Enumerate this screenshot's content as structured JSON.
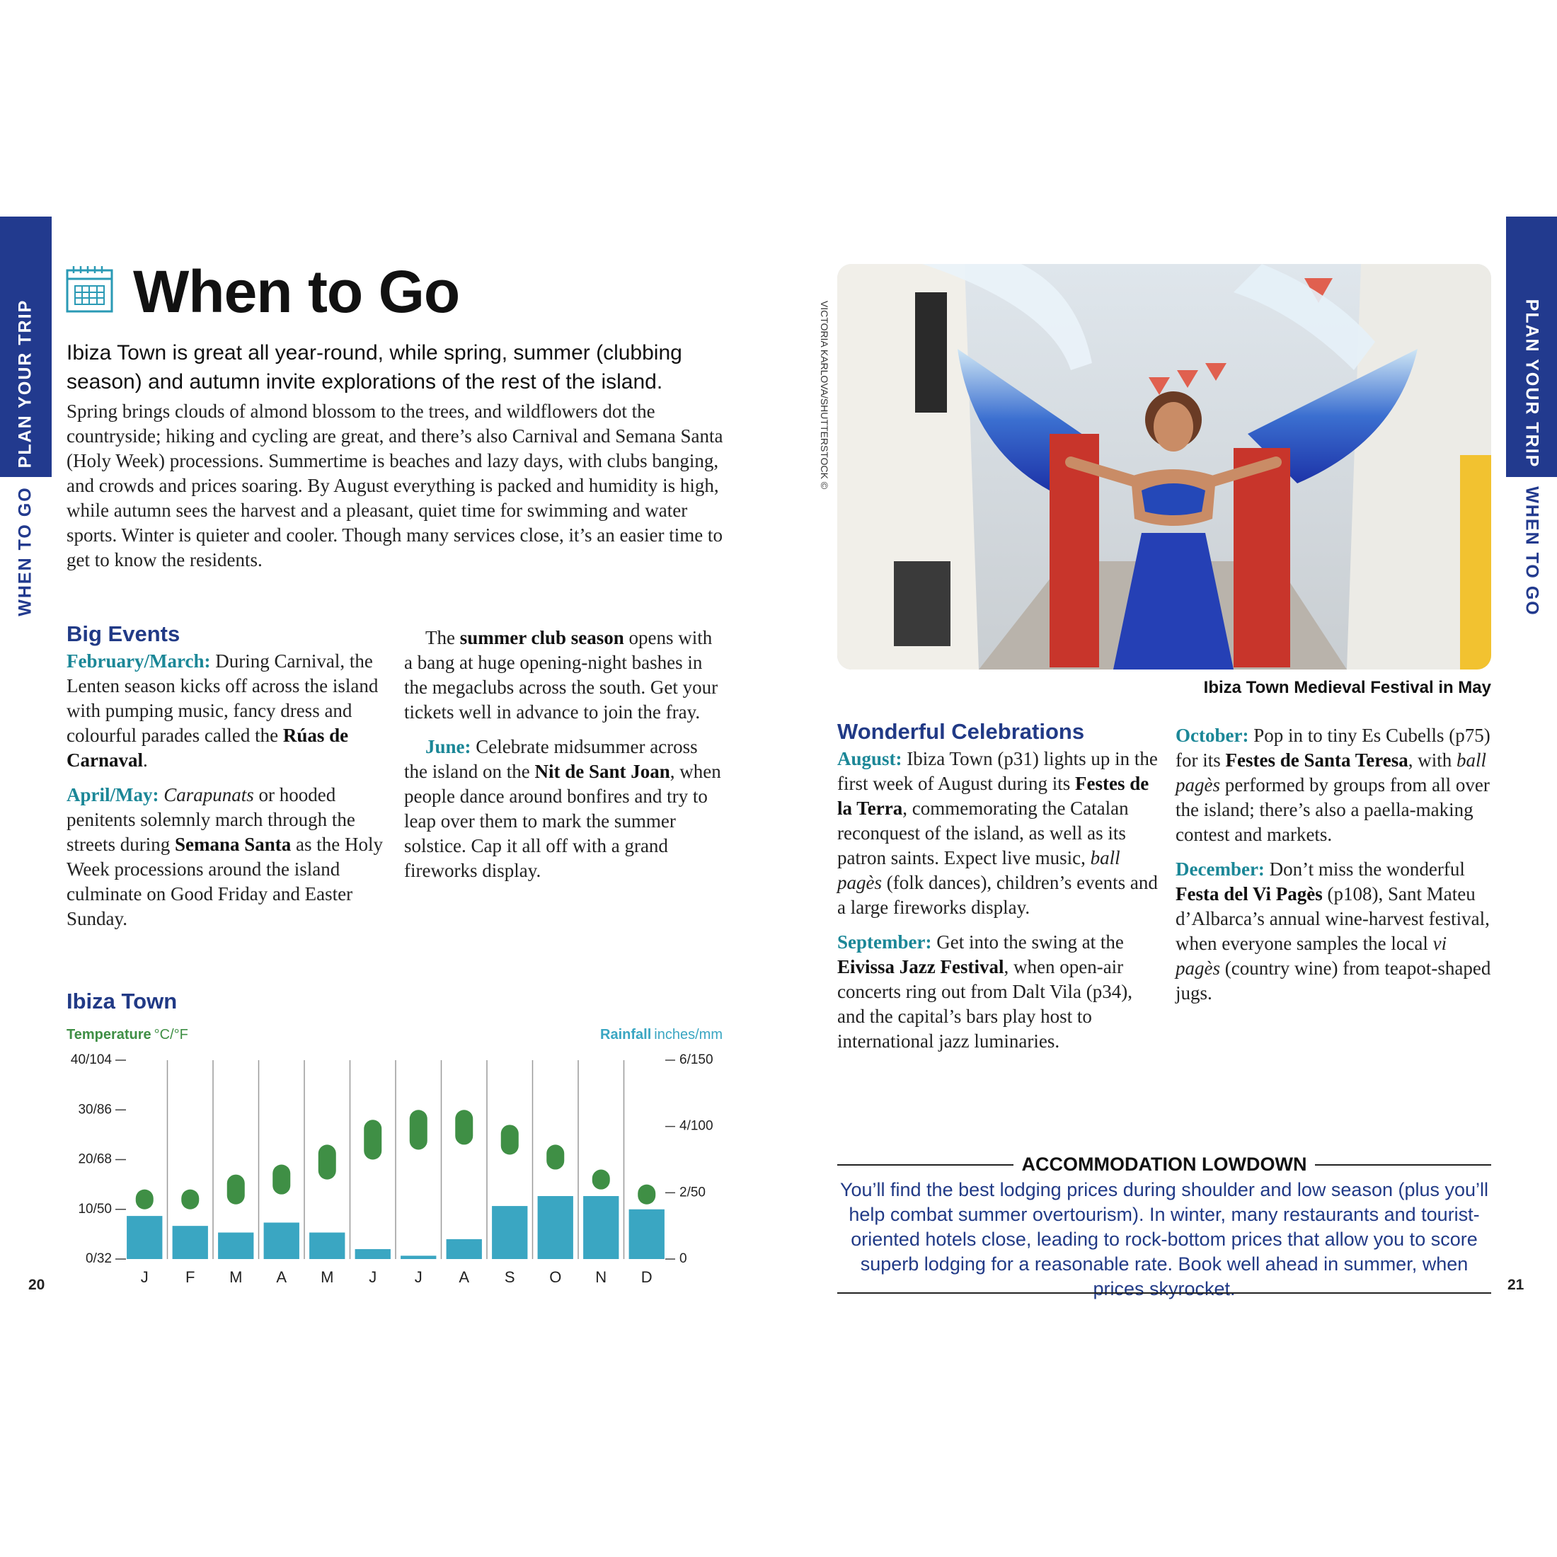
{
  "side_tab": {
    "section": "PLAN YOUR TRIP",
    "chapter": "WHEN TO GO"
  },
  "left_page": {
    "title": "When to Go",
    "intro": "Ibiza Town is great all year-round, while spring, summer (clubbing season) and autumn invite explorations of the rest of the island.",
    "body": "Spring brings clouds of almond blossom to the trees, and wildflowers dot the countryside; hiking and cycling are great, and there’s also Carnival and Semana Santa (Holy Week) processions. Summertime is beaches and lazy days, with clubs banging, and crowds and prices soaring. By August everything is packed and humidity is high, while autumn sees the harvest and a pleasant, quiet time for swimming and water sports. Winter is quieter and cooler. Though many services close, it’s an easier time to get to know the residents.",
    "big_events": {
      "heading": "Big Events",
      "columns": [
        [
          [
            {
              "text": "February/March:",
              "style": "lead"
            },
            {
              "text": " During Carnival, the Lenten season kicks off across the island with pumping music, fancy dress and colourful parades called the "
            },
            {
              "text": "Rúas de Carnaval",
              "style": "b"
            },
            {
              "text": "."
            }
          ],
          [
            {
              "text": "April/May:",
              "style": "lead"
            },
            {
              "text": " "
            },
            {
              "text": "Carapunats",
              "style": "i"
            },
            {
              "text": " or hooded penitents solemnly march through the streets during "
            },
            {
              "text": "Semana Santa",
              "style": "b"
            },
            {
              "text": " as the Holy Week processions around the island culminate on Good Friday and Easter Sunday."
            }
          ]
        ],
        [
          [
            {
              "text": "The "
            },
            {
              "text": "summer club season",
              "style": "b"
            },
            {
              "text": " opens with a bang at huge opening-night bashes in the megaclubs across the south. Get your tickets well in advance to join the fray."
            }
          ],
          [
            {
              "text": "June:",
              "style": "lead"
            },
            {
              "text": " Celebrate midsummer across the island on the "
            },
            {
              "text": "Nit de Sant Joan",
              "style": "b"
            },
            {
              "text": ", when people dance around bonfires and try to leap over them to mark the summer solstice. Cap it all off with a grand fireworks display."
            }
          ]
        ]
      ]
    },
    "page_number": 20
  },
  "chart_data": {
    "type": "bar",
    "title": "Ibiza Town",
    "y_label": "Temperature",
    "y_unit": "°C/°F",
    "y2_label": "Rainfall",
    "y2_unit": "inches/mm",
    "categories": [
      "J",
      "F",
      "M",
      "A",
      "M",
      "J",
      "J",
      "A",
      "S",
      "O",
      "N",
      "D"
    ],
    "ylim": [
      0,
      40
    ],
    "yticks": [
      {
        "value": 0,
        "label": "0/32"
      },
      {
        "value": 10,
        "label": "10/50"
      },
      {
        "value": 20,
        "label": "20/68"
      },
      {
        "value": 30,
        "label": "30/86"
      },
      {
        "value": 40,
        "label": "40/104"
      }
    ],
    "y2lim": [
      0,
      6
    ],
    "y2ticks": [
      0,
      {
        "value": 2,
        "label": "2/50"
      },
      {
        "value": 4,
        "label": "4/100"
      },
      {
        "value": 6,
        "label": "6/150"
      }
    ],
    "temperature": {
      "color": "#3f8f45",
      "low": [
        10,
        10,
        11,
        13,
        16,
        20,
        22,
        23,
        21,
        18,
        14,
        11
      ],
      "high": [
        14,
        14,
        17,
        19,
        23,
        28,
        30,
        30,
        27,
        23,
        18,
        15
      ]
    },
    "rainfall": {
      "color": "#3aa6c2",
      "axis": "y2",
      "values": [
        1.3,
        1.0,
        0.8,
        1.1,
        0.8,
        0.3,
        0.1,
        0.6,
        1.6,
        1.9,
        1.9,
        1.5
      ]
    }
  },
  "right_page": {
    "photo_credit": "VICTORIA KARLOVA/SHUTTERSTOCK ©",
    "caption": "Ibiza Town Medieval Festival in May",
    "celebrations": {
      "heading": "Wonderful Celebrations",
      "columns": [
        [
          [
            {
              "text": "August:",
              "style": "lead"
            },
            {
              "text": " Ibiza Town (p31) lights up in the first week of August during its "
            },
            {
              "text": "Festes de la Terra",
              "style": "b"
            },
            {
              "text": ", commemorating the Catalan reconquest of the island, as well as its patron saints. Expect live music, "
            },
            {
              "text": "ball pagès",
              "style": "i"
            },
            {
              "text": " (folk dances), children’s events and a large fireworks display."
            }
          ],
          [
            {
              "text": "September:",
              "style": "lead"
            },
            {
              "text": " Get into the swing at the "
            },
            {
              "text": "Eivissa Jazz Festival",
              "style": "b"
            },
            {
              "text": ", when open-air concerts ring out from Dalt Vila (p34), and the capital’s bars play host to international jazz luminaries."
            }
          ]
        ],
        [
          [
            {
              "text": "October:",
              "style": "lead"
            },
            {
              "text": " Pop in to tiny Es Cubells (p75) for its "
            },
            {
              "text": "Festes de Santa Teresa",
              "style": "b"
            },
            {
              "text": ", with "
            },
            {
              "text": "ball pagès",
              "style": "i"
            },
            {
              "text": " performed by groups from all over the island; there’s also a paella-making contest and markets."
            }
          ],
          [
            {
              "text": "December:",
              "style": "lead"
            },
            {
              "text": " Don’t miss the wonderful "
            },
            {
              "text": "Festa del Vi Pagès",
              "style": "b"
            },
            {
              "text": " (p108), Sant Mateu d’Albarca’s annual wine-harvest festival, when everyone samples the local "
            },
            {
              "text": "vi pagès",
              "style": "i"
            },
            {
              "text": " (country wine) from teapot-shaped jugs."
            }
          ]
        ]
      ]
    },
    "accommodation": {
      "heading": "ACCOMMODATION LOWDOWN",
      "text": "You’ll find the best lodging prices during shoulder and low season (plus you’ll help combat summer overtourism). In winter, many restaurants and tourist-oriented hotels close, leading to rock-bottom prices that allow you to score superb lodging for a reasonable rate. Book well ahead in summer, when prices skyrocket."
    },
    "page_number": 21
  }
}
